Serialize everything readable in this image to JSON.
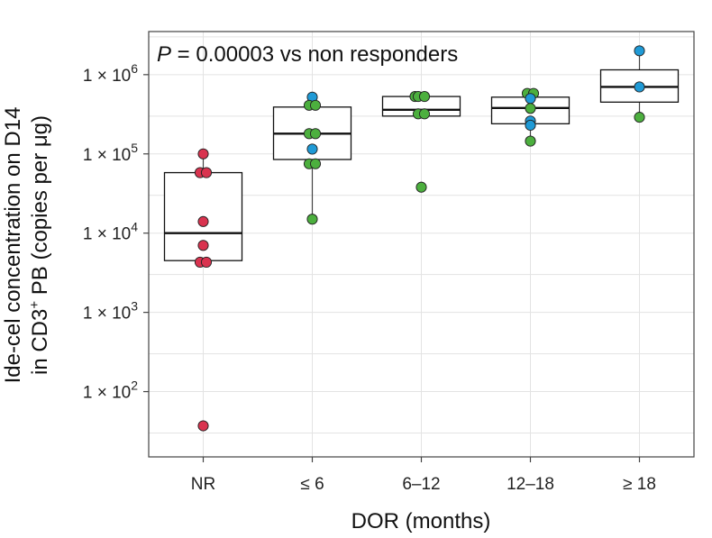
{
  "chart_data": {
    "type": "box",
    "annotation": {
      "italic": "P",
      "text": " = 0.00003 vs non responders"
    },
    "xlabel": "DOR (months)",
    "ylabel_line1": "Ide-cel concentration on D14",
    "ylabel_line2": {
      "pre": "in CD3",
      "sup": "+",
      "post": " PB (copies per μg)"
    },
    "yscale": "log10",
    "ylim": [
      15,
      3500000
    ],
    "grid": true,
    "y_ticks": [
      {
        "value": 100,
        "base": "1 × 10",
        "exp": "2"
      },
      {
        "value": 1000,
        "base": "1 × 10",
        "exp": "3"
      },
      {
        "value": 10000,
        "base": "1 × 10",
        "exp": "4"
      },
      {
        "value": 100000,
        "base": "1 × 10",
        "exp": "5"
      },
      {
        "value": 1000000,
        "base": "1 × 10",
        "exp": "6"
      }
    ],
    "categories": [
      "NR",
      "≤ 6",
      "6–12",
      "12–18",
      "≥ 18"
    ],
    "colors": {
      "red": "#d9334f",
      "green": "#4caf3e",
      "blue": "#1f9ad6",
      "box": "#111111"
    },
    "groups": [
      {
        "category": "NR",
        "box": {
          "q1": 4500,
          "median": 10000,
          "q3": 58000,
          "whisker_low": 4500,
          "whisker_high": 100000
        },
        "points": [
          {
            "y": 100000,
            "color": "red"
          },
          {
            "y": 58000,
            "color": "red",
            "dx": -1
          },
          {
            "y": 58000,
            "color": "red",
            "dx": 1
          },
          {
            "y": 14000,
            "color": "red"
          },
          {
            "y": 7000,
            "color": "red"
          },
          {
            "y": 4300,
            "color": "red",
            "dx": -1
          },
          {
            "y": 4300,
            "color": "red",
            "dx": 1
          },
          {
            "y": 37,
            "color": "red"
          }
        ]
      },
      {
        "category": "≤ 6",
        "box": {
          "q1": 85000,
          "median": 180000,
          "q3": 390000,
          "whisker_low": 15000,
          "whisker_high": 520000
        },
        "points": [
          {
            "y": 520000,
            "color": "blue"
          },
          {
            "y": 410000,
            "color": "green",
            "dx": -1
          },
          {
            "y": 410000,
            "color": "green",
            "dx": 1
          },
          {
            "y": 180000,
            "color": "green",
            "dx": -1
          },
          {
            "y": 180000,
            "color": "green",
            "dx": 1
          },
          {
            "y": 115000,
            "color": "blue"
          },
          {
            "y": 75000,
            "color": "green",
            "dx": -1
          },
          {
            "y": 75000,
            "color": "green",
            "dx": 1
          },
          {
            "y": 15000,
            "color": "green"
          }
        ]
      },
      {
        "category": "6–12",
        "box": {
          "q1": 300000,
          "median": 360000,
          "q3": 530000,
          "whisker_low": 300000,
          "whisker_high": 530000
        },
        "points": [
          {
            "y": 530000,
            "color": "green",
            "dx": -2
          },
          {
            "y": 530000,
            "color": "green",
            "dx": -1
          },
          {
            "y": 530000,
            "color": "green",
            "dx": 1
          },
          {
            "y": 320000,
            "color": "green",
            "dx": -1
          },
          {
            "y": 320000,
            "color": "green",
            "dx": 1
          },
          {
            "y": 38000,
            "color": "green"
          }
        ]
      },
      {
        "category": "12–18",
        "box": {
          "q1": 240000,
          "median": 380000,
          "q3": 520000,
          "whisker_low": 145000,
          "whisker_high": 580000
        },
        "points": [
          {
            "y": 580000,
            "color": "green",
            "dx": -1
          },
          {
            "y": 580000,
            "color": "green",
            "dx": 1
          },
          {
            "y": 500000,
            "color": "blue"
          },
          {
            "y": 375000,
            "color": "green"
          },
          {
            "y": 260000,
            "color": "blue"
          },
          {
            "y": 230000,
            "color": "blue"
          },
          {
            "y": 145000,
            "color": "green"
          }
        ]
      },
      {
        "category": "≥ 18",
        "box": {
          "q1": 450000,
          "median": 700000,
          "q3": 1150000,
          "whisker_low": 290000,
          "whisker_high": 2000000
        },
        "points": [
          {
            "y": 2000000,
            "color": "blue"
          },
          {
            "y": 700000,
            "color": "blue"
          },
          {
            "y": 290000,
            "color": "green"
          }
        ]
      }
    ]
  }
}
